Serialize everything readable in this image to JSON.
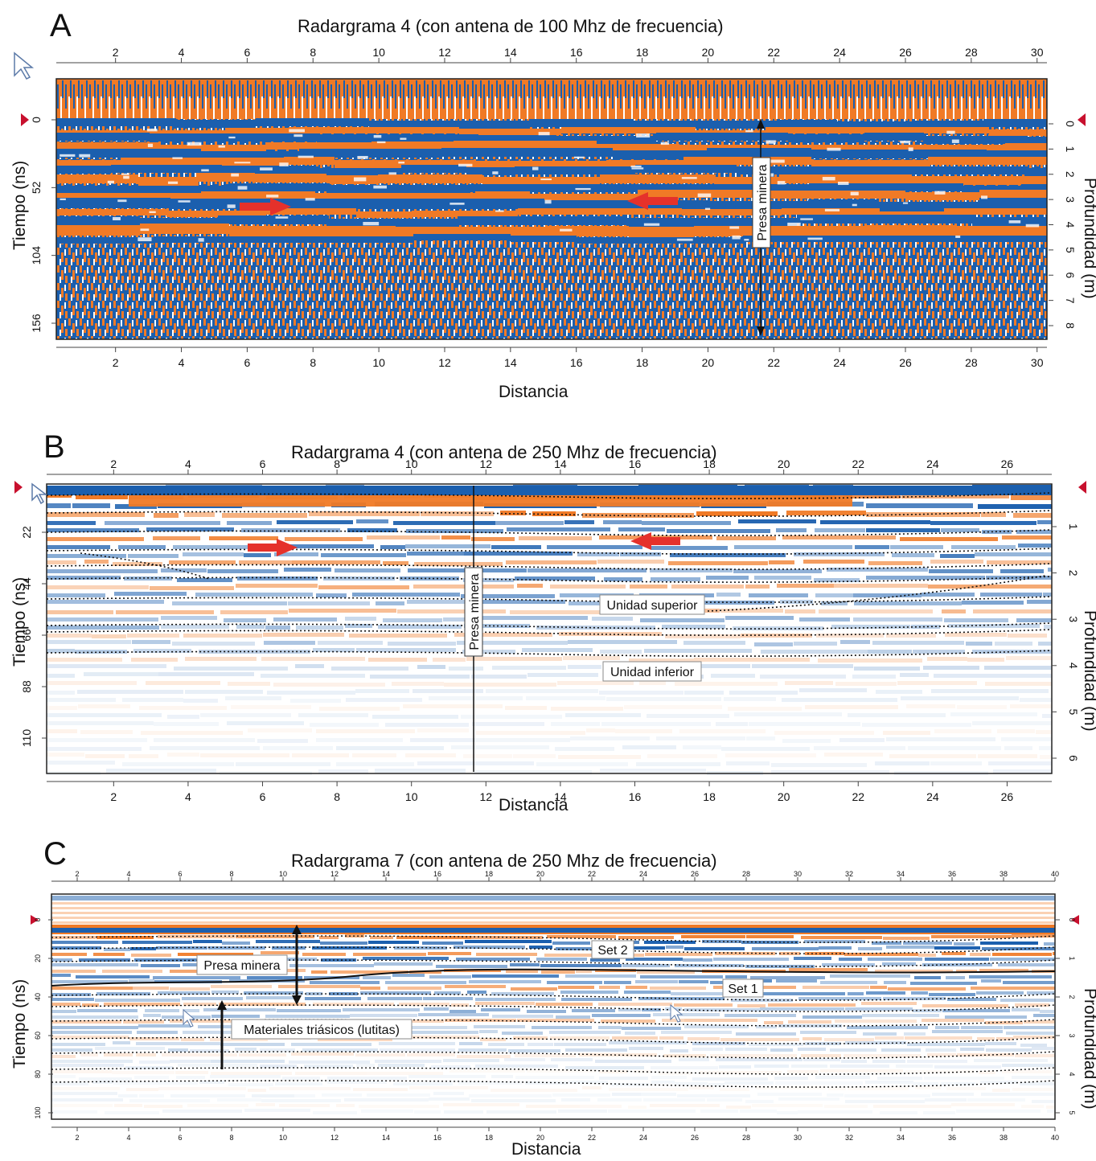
{
  "colors": {
    "orange": "#f07a26",
    "blue": "#1b5fae",
    "white": "#ffffff",
    "arrow_red": "#e5312b",
    "marker_red": "#c8102e"
  },
  "panels": [
    {
      "letter": "A",
      "title": "Radargrama 4 (con antena de 100 Mhz de frecuencia)",
      "xlabel": "Distancia",
      "ylabel_left": "Tiempo (ns)",
      "ylabel_right": "Profundidad (m)",
      "x_ticks": [
        "2",
        "4",
        "6",
        "8",
        "10",
        "12",
        "14",
        "16",
        "18",
        "20",
        "22",
        "24",
        "26",
        "28",
        "30"
      ],
      "y_ticks_left": [
        "0",
        "52",
        "104",
        "156"
      ],
      "y_ticks_right": [
        "0",
        "1",
        "2",
        "3",
        "4",
        "5",
        "6",
        "7",
        "8"
      ],
      "annotations": {
        "vertical_label": "Presa minera"
      }
    },
    {
      "letter": "B",
      "title": "Radargrama 4 (con antena de 250 Mhz de frecuencia)",
      "xlabel": "Distancia",
      "ylabel_left": "Tiempo (ns)",
      "ylabel_right": "Profundidad (m)",
      "x_ticks": [
        "2",
        "4",
        "6",
        "8",
        "10",
        "12",
        "14",
        "16",
        "18",
        "20",
        "22",
        "24",
        "26"
      ],
      "y_ticks_left": [
        "22",
        "44",
        "66",
        "88",
        "110"
      ],
      "y_ticks_right": [
        "1",
        "2",
        "3",
        "4",
        "5",
        "6"
      ],
      "annotations": {
        "vertical_label": "Presa minera",
        "unit_upper": "Unidad superior",
        "unit_lower": "Unidad inferior"
      }
    },
    {
      "letter": "C",
      "title": "Radargrama 7 (con antena de 250 Mhz de frecuencia)",
      "xlabel": "Distancia",
      "ylabel_left": "Tiempo (ns)",
      "ylabel_right": "Profundidad (m)",
      "x_ticks": [
        "2",
        "4",
        "6",
        "8",
        "10",
        "12",
        "14",
        "16",
        "18",
        "20",
        "22",
        "24",
        "26",
        "28",
        "30",
        "32",
        "34",
        "36",
        "38",
        "40"
      ],
      "y_ticks_left": [
        "0",
        "20",
        "40",
        "60",
        "80",
        "100"
      ],
      "y_ticks_right": [
        "0",
        "1",
        "2",
        "3",
        "4",
        "5"
      ],
      "annotations": {
        "label_dam": "Presa minera",
        "label_set2": "Set 2",
        "label_set1": "Set 1",
        "label_materials": "Materiales triásicos (lutitas)"
      }
    }
  ]
}
